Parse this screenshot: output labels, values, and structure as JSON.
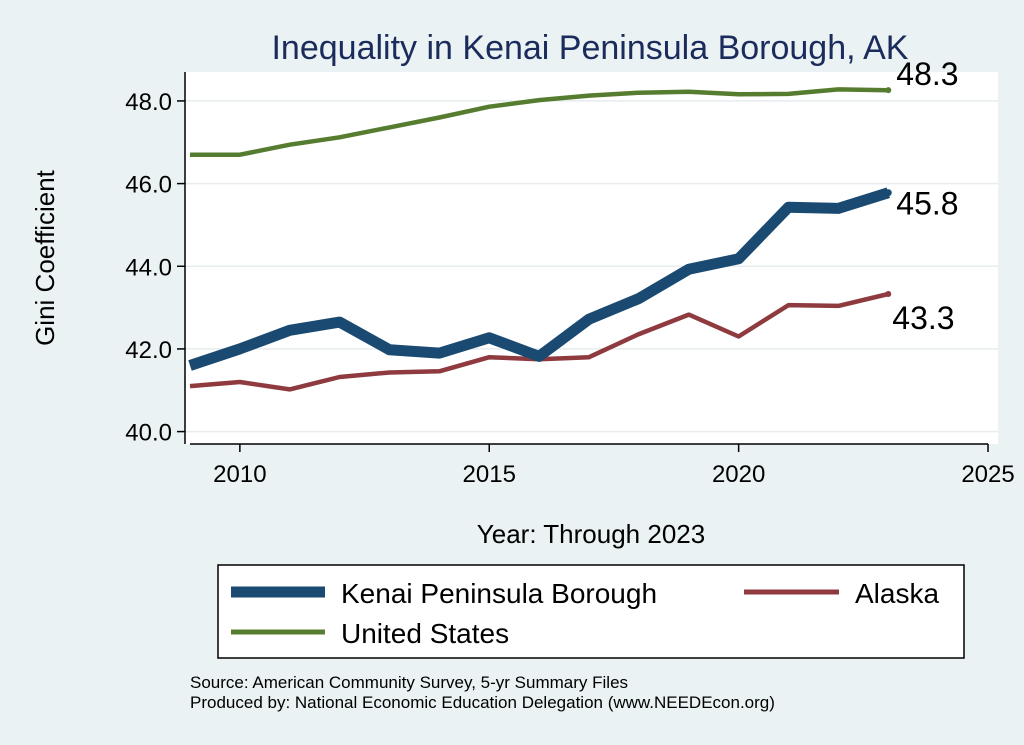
{
  "chart_data": {
    "type": "line",
    "title": "Inequality in Kenai Peninsula Borough, AK",
    "xlabel": "Year: Through 2023",
    "ylabel": "Gini Coefficient",
    "xlim": [
      2008.9,
      2025.2
    ],
    "ylim": [
      39.7,
      48.7
    ],
    "xticks": [
      2010,
      2015,
      2020,
      2025
    ],
    "yticks": [
      40.0,
      42.0,
      44.0,
      46.0,
      48.0
    ],
    "ytick_labels": [
      "40.0",
      "42.0",
      "44.0",
      "46.0",
      "48.0"
    ],
    "grid": "horizontal",
    "legend_position": "bottom",
    "x": [
      2009,
      2010,
      2011,
      2012,
      2013,
      2014,
      2015,
      2016,
      2017,
      2018,
      2019,
      2020,
      2021,
      2022,
      2023
    ],
    "series": [
      {
        "name": "Kenai Peninsula Borough",
        "color": "#1a4a72",
        "values": [
          41.6,
          42.0,
          42.45,
          42.65,
          41.98,
          41.9,
          42.27,
          41.82,
          42.72,
          43.22,
          43.93,
          44.18,
          45.43,
          45.4,
          45.78
        ],
        "end_label": "45.8"
      },
      {
        "name": "Alaska",
        "color": "#8e3a3f",
        "values": [
          41.1,
          41.2,
          41.02,
          41.32,
          41.43,
          41.46,
          41.8,
          41.75,
          41.8,
          42.36,
          42.83,
          42.3,
          43.06,
          43.04,
          43.33
        ],
        "end_label": "43.3"
      },
      {
        "name": "United States",
        "color": "#567d2f",
        "values": [
          46.7,
          46.7,
          46.94,
          47.12,
          47.36,
          47.6,
          47.86,
          48.02,
          48.13,
          48.2,
          48.22,
          48.16,
          48.17,
          48.28,
          48.26
        ],
        "end_label": "48.3"
      }
    ],
    "source_lines": [
      "Source: American Community Survey, 5-yr Summary Files",
      "Produced by: National Economic Education Delegation (www.NEEDEcon.org)"
    ]
  }
}
